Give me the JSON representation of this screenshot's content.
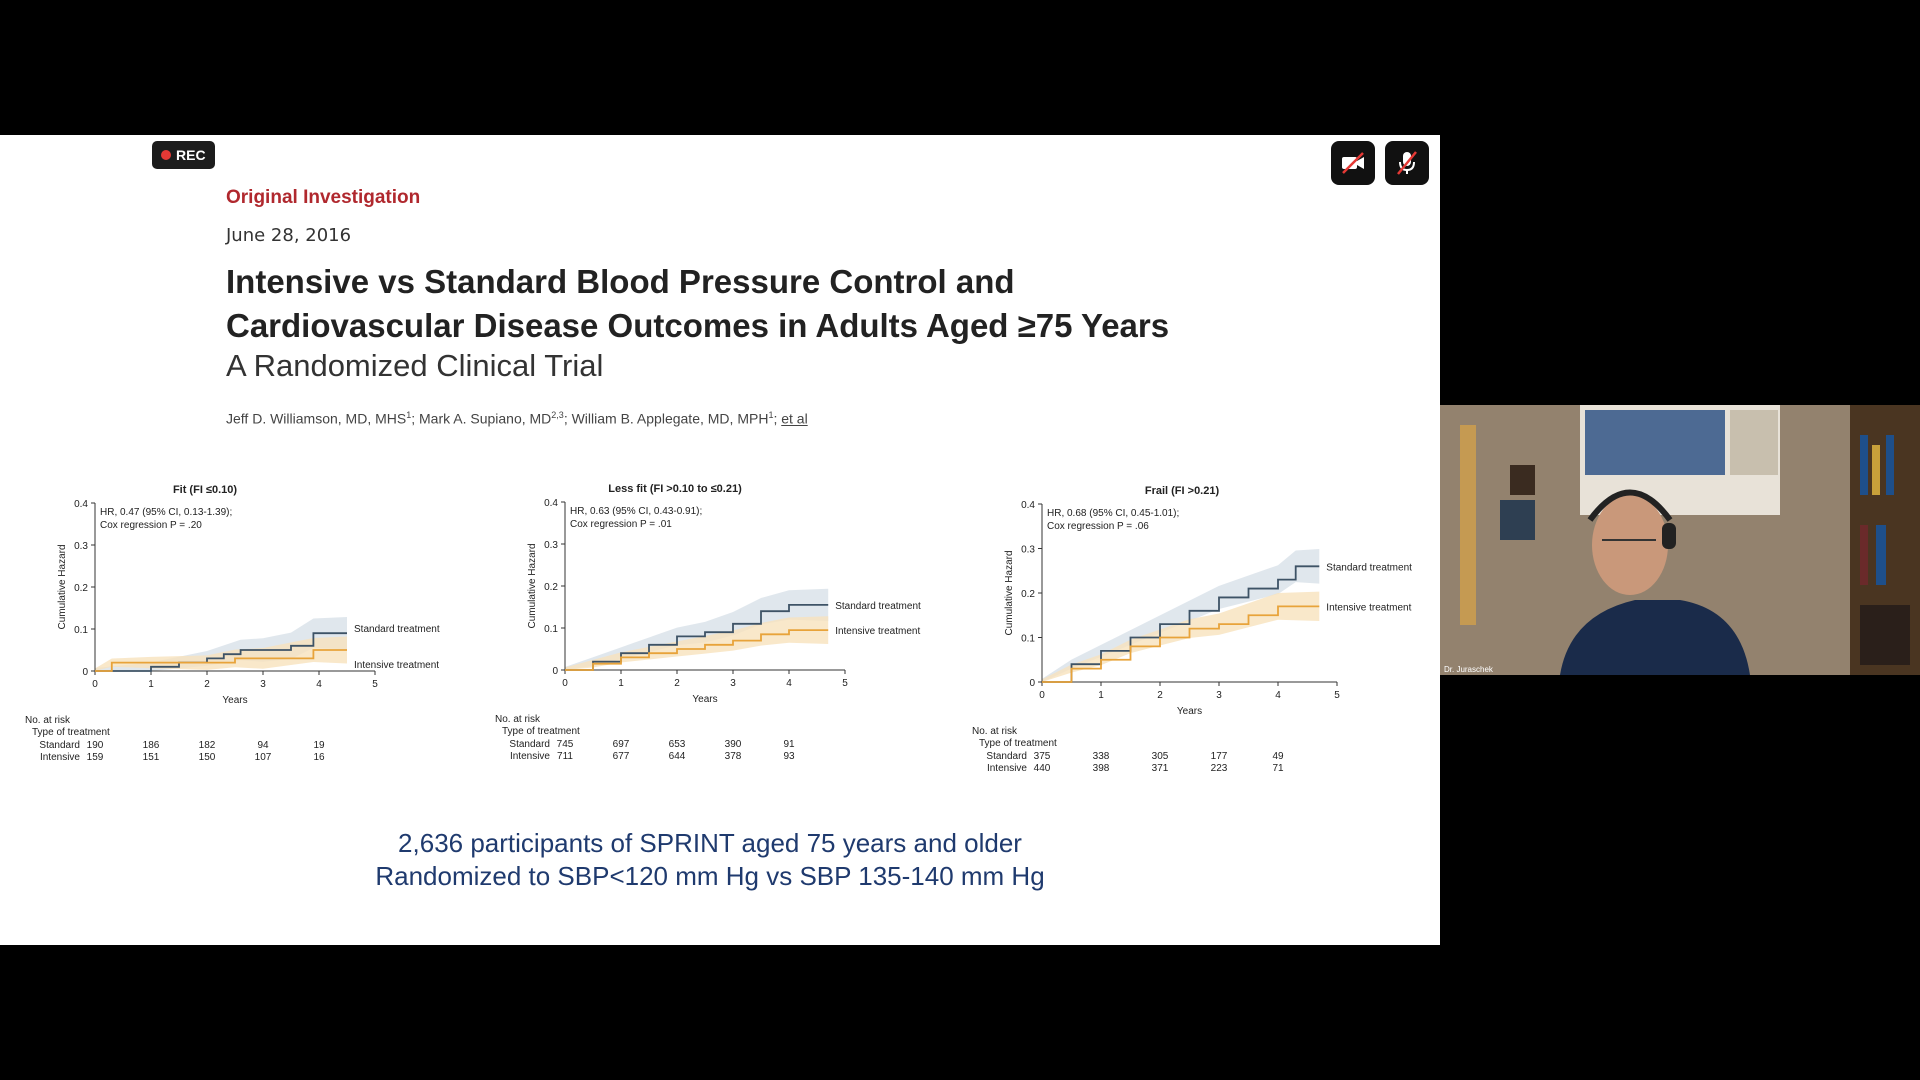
{
  "recording": {
    "label": "REC"
  },
  "controls": {
    "camera_icon": "video-off-icon",
    "mic_icon": "mic-off-icon"
  },
  "slide": {
    "eyebrow": "Original Investigation",
    "date": "June 28, 2016",
    "title_line1": "Intensive vs Standard Blood Pressure Control and",
    "title_line2": "Cardiovascular Disease Outcomes in Adults Aged ≥75 Years",
    "subtitle": "A Randomized Clinical Trial",
    "authors": {
      "a1": "Jeff D. Williamson, MD, MHS",
      "a1_sup": "1",
      "a2": "; Mark A. Supiano, MD",
      "a2_sup": "2,3",
      "a3": "; William B. Applegate, MD, MPH",
      "a3_sup": "1",
      "sep": "; ",
      "etal": "et al"
    },
    "summary_line1": "2,636 participants of SPRINT aged 75 years and older",
    "summary_line2": "Randomized to SBP<120  mm Hg vs SBP 135-140 mm Hg"
  },
  "colors": {
    "standard": "#3e5366",
    "intensive": "#e8a33a",
    "standard_band": "#d8e1e8",
    "intensive_band": "#f8e2bd"
  },
  "chart_data": [
    {
      "type": "line",
      "title": "Fit (FI ≤0.10)",
      "xlabel": "Years",
      "ylabel": "Cumulative Hazard",
      "xlim": [
        0,
        5
      ],
      "ylim": [
        0,
        0.4
      ],
      "xticks": [
        "0",
        "1",
        "2",
        "3",
        "4",
        "5"
      ],
      "yticks": [
        "0",
        "0.1",
        "0.2",
        "0.3",
        "0.4"
      ],
      "annotation_line1": "HR, 0.47 (95% CI, 0.13-1.39);",
      "annotation_line2": "Cox regression P = .20",
      "series": [
        {
          "name": "Standard treatment",
          "x": [
            0,
            1,
            1.5,
            2,
            2.3,
            2.6,
            3,
            3.5,
            3.9,
            4.5
          ],
          "y": [
            0,
            0.01,
            0.02,
            0.03,
            0.04,
            0.05,
            0.05,
            0.06,
            0.09,
            0.09
          ]
        },
        {
          "name": "Intensive treatment",
          "x": [
            0,
            0.3,
            1,
            2,
            2.5,
            3,
            3.9,
            4.5
          ],
          "y": [
            0,
            0.02,
            0.02,
            0.02,
            0.03,
            0.03,
            0.05,
            0.05
          ]
        }
      ],
      "risk_table": {
        "header": "No. at risk",
        "subheader": "Type of treatment",
        "rows": [
          {
            "label": "Standard",
            "values": [
              "190",
              "186",
              "182",
              "94",
              "19"
            ]
          },
          {
            "label": "Intensive",
            "values": [
              "159",
              "151",
              "150",
              "107",
              "16"
            ]
          }
        ]
      }
    },
    {
      "type": "line",
      "title": "Less fit (FI >0.10 to ≤0.21)",
      "xlabel": "Years",
      "ylabel": "Cumulative Hazard",
      "xlim": [
        0,
        5
      ],
      "ylim": [
        0,
        0.4
      ],
      "xticks": [
        "0",
        "1",
        "2",
        "3",
        "4",
        "5"
      ],
      "yticks": [
        "0",
        "0.1",
        "0.2",
        "0.3",
        "0.4"
      ],
      "annotation_line1": "HR, 0.63 (95% CI, 0.43-0.91);",
      "annotation_line2": "Cox regression P = .01",
      "series": [
        {
          "name": "Standard treatment",
          "x": [
            0,
            0.5,
            1,
            1.5,
            2,
            2.5,
            3,
            3.5,
            4,
            4.7
          ],
          "y": [
            0,
            0.02,
            0.04,
            0.06,
            0.08,
            0.09,
            0.11,
            0.14,
            0.155,
            0.155
          ]
        },
        {
          "name": "Intensive treatment",
          "x": [
            0,
            0.5,
            1,
            1.5,
            2,
            2.5,
            3,
            3.5,
            4,
            4.7
          ],
          "y": [
            0,
            0.015,
            0.03,
            0.04,
            0.05,
            0.06,
            0.07,
            0.085,
            0.095,
            0.095
          ]
        }
      ],
      "risk_table": {
        "header": "No. at risk",
        "subheader": "Type of treatment",
        "rows": [
          {
            "label": "Standard",
            "values": [
              "745",
              "697",
              "653",
              "390",
              "91"
            ]
          },
          {
            "label": "Intensive",
            "values": [
              "711",
              "677",
              "644",
              "378",
              "93"
            ]
          }
        ]
      }
    },
    {
      "type": "line",
      "title": "Frail (FI >0.21)",
      "xlabel": "Years",
      "ylabel": "Cumulative Hazard",
      "xlim": [
        0,
        5
      ],
      "ylim": [
        0,
        0.4
      ],
      "xticks": [
        "0",
        "1",
        "2",
        "3",
        "4",
        "5"
      ],
      "yticks": [
        "0",
        "0.1",
        "0.2",
        "0.3",
        "0.4"
      ],
      "annotation_line1": "HR, 0.68 (95% CI, 0.45-1.01);",
      "annotation_line2": "Cox regression P = .06",
      "series": [
        {
          "name": "Standard treatment",
          "x": [
            0,
            0.5,
            1,
            1.5,
            2,
            2.5,
            3,
            3.5,
            4,
            4.3,
            4.7
          ],
          "y": [
            0,
            0.04,
            0.07,
            0.1,
            0.13,
            0.16,
            0.19,
            0.21,
            0.23,
            0.26,
            0.26
          ]
        },
        {
          "name": "Intensive treatment",
          "x": [
            0,
            0.5,
            1,
            1.5,
            2,
            2.5,
            3,
            3.5,
            4,
            4.7
          ],
          "y": [
            0,
            0.03,
            0.05,
            0.08,
            0.1,
            0.12,
            0.13,
            0.15,
            0.17,
            0.17
          ]
        }
      ],
      "risk_table": {
        "header": "No. at risk",
        "subheader": "Type of treatment",
        "rows": [
          {
            "label": "Standard",
            "values": [
              "375",
              "338",
              "305",
              "177",
              "49"
            ]
          },
          {
            "label": "Intensive",
            "values": [
              "440",
              "398",
              "371",
              "223",
              "71"
            ]
          }
        ]
      }
    }
  ],
  "video": {
    "participant_name": "Dr. Juraschek"
  }
}
